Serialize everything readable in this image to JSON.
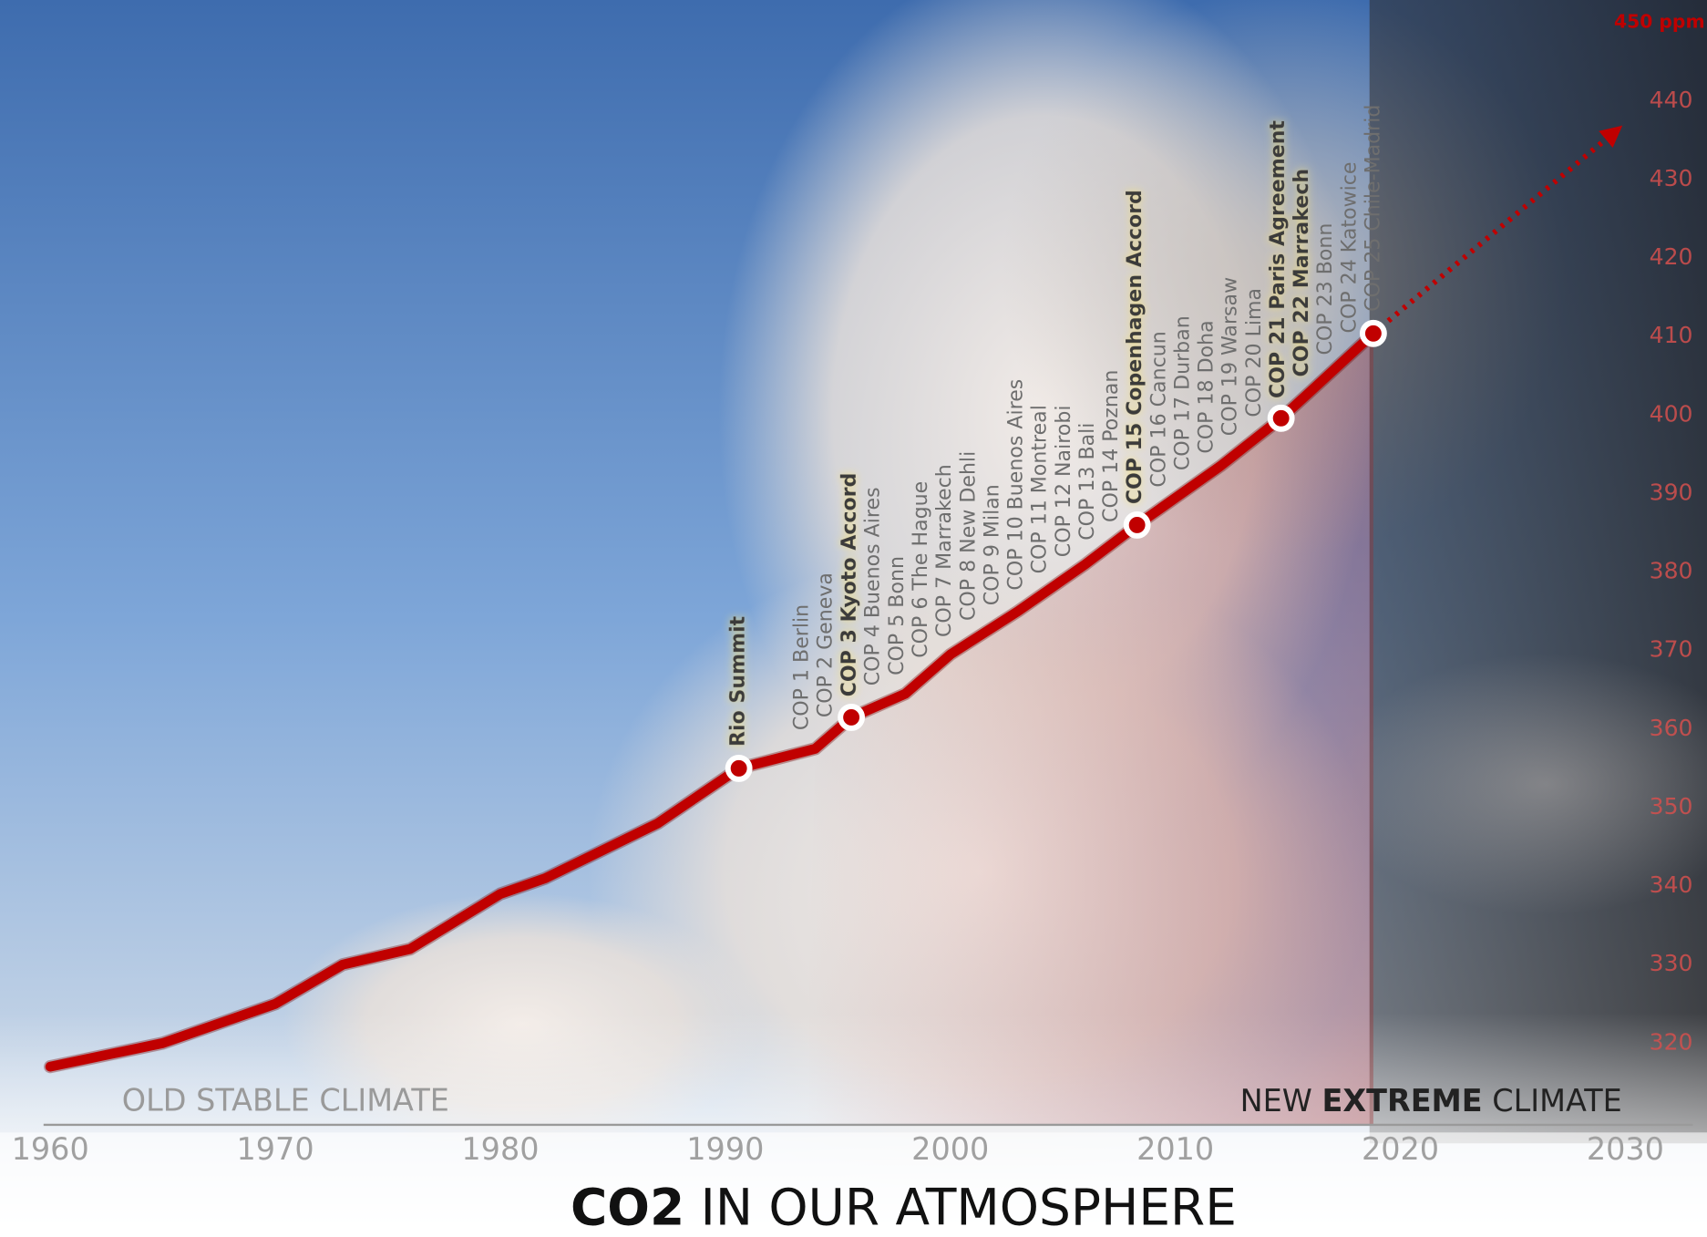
{
  "chart_data": {
    "type": "line",
    "title": [
      "CO2",
      "IN OUR ATMOSPHERE"
    ],
    "left_label": "OLD STABLE CLIMATE",
    "right_label": [
      "NEW",
      "EXTREME",
      "CLIMATE"
    ],
    "color": "#c00000",
    "x": [
      1960,
      1965,
      1970,
      1973,
      1976,
      1980,
      1982,
      1987,
      1990.6,
      1994,
      1995.6,
      1998,
      2000,
      2003,
      2006,
      2008.3,
      2012,
      2014.7,
      2016,
      2018.8
    ],
    "values": [
      317,
      320,
      325,
      330,
      332,
      339,
      341,
      348,
      355,
      357.5,
      361.5,
      364.5,
      369.5,
      375,
      381,
      386,
      393.5,
      399.6,
      403,
      410.4
    ],
    "projection": {
      "x": [
        2018.8,
        2029.5
      ],
      "values": [
        410.4,
        436
      ]
    },
    "markers": [
      {
        "x": 1990.6,
        "value": 355
      },
      {
        "x": 1995.6,
        "value": 361.5
      },
      {
        "x": 2008.3,
        "value": 386
      },
      {
        "x": 2014.7,
        "value": 399.6
      },
      {
        "x": 2018.8,
        "value": 410.4
      }
    ],
    "annotations": [
      {
        "text": "Rio Summit",
        "highlighted": true
      },
      {
        "text": "COP 1 Berlin"
      },
      {
        "text": "COP 2 Geneva"
      },
      {
        "text": "COP 3 Kyoto Accord",
        "highlighted": true
      },
      {
        "text": "COP 4 Buenos Aires"
      },
      {
        "text": "COP 5 Bonn"
      },
      {
        "text": "COP 6 The Hague"
      },
      {
        "text": "COP 7 Marrakech"
      },
      {
        "text": "COP 8 New Dehli"
      },
      {
        "text": "COP 9 Milan"
      },
      {
        "text": "COP 10 Buenos Aires"
      },
      {
        "text": "COP 11 Montreal"
      },
      {
        "text": "COP 12 Nairobi"
      },
      {
        "text": "COP 13 Bali"
      },
      {
        "text": "COP 14 Poznan"
      },
      {
        "text": "COP 15 Copenhagen Accord",
        "highlighted": true
      },
      {
        "text": "COP 16 Cancun"
      },
      {
        "text": "COP 17 Durban"
      },
      {
        "text": "COP 18 Doha"
      },
      {
        "text": "COP 19 Warsaw"
      },
      {
        "text": "COP 20 Lima"
      },
      {
        "text": "COP 21 Paris Agreement",
        "highlighted": true
      },
      {
        "text": "COP 22 Marrakech",
        "highlighted": true
      },
      {
        "text": "COP 23 Bonn"
      },
      {
        "text": "COP 24 Katowice"
      },
      {
        "text": "COP 25 Chile-Madrid"
      }
    ],
    "xlim": [
      1959.7,
      2033
    ],
    "xticks": [
      1960,
      1970,
      1980,
      1990,
      2000,
      2010,
      2020,
      2030
    ],
    "ylim": [
      315,
      451
    ],
    "yticks": [
      320,
      330,
      340,
      350,
      360,
      370,
      380,
      390,
      400,
      410,
      420,
      430,
      440,
      {
        "value": 450,
        "label": "450 ppm"
      }
    ]
  }
}
